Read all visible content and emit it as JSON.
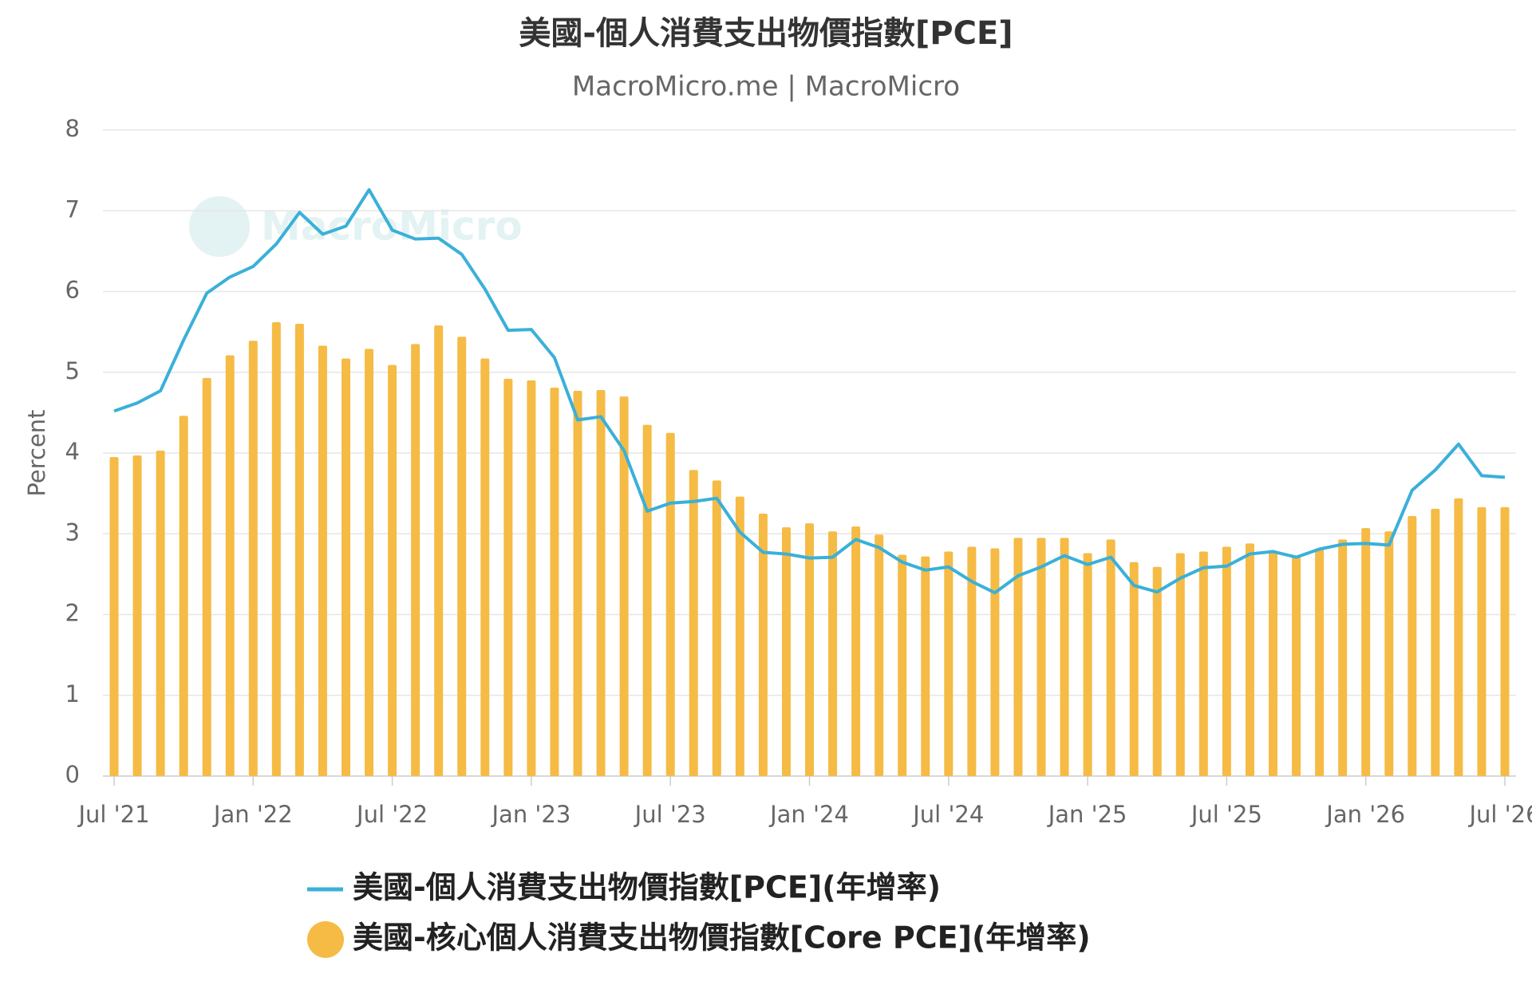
{
  "chart_data": {
    "type": "bar_line",
    "title": "美國-個人消費支出物價指數[PCE]",
    "subtitle": "MacroMicro.me | MacroMicro",
    "watermark": "MacroMicro",
    "y_label": "Percent",
    "categories": [
      "Jul '21",
      null,
      null,
      null,
      null,
      null,
      "Jan '22",
      null,
      null,
      null,
      null,
      null,
      "Jul '22",
      null,
      null,
      null,
      null,
      null,
      "Jan '23",
      null,
      null,
      null,
      null,
      null,
      "Jul '23",
      null,
      null,
      null,
      null,
      null,
      "Jan '24",
      null,
      null,
      null,
      null,
      null,
      "Jul '24",
      null,
      null,
      null,
      null,
      null,
      "Jan '25",
      null,
      null,
      null,
      null,
      null,
      "Jul '25",
      null,
      null,
      null,
      null,
      null,
      "Jan '26",
      null,
      null,
      null,
      null,
      null,
      "Jul '26"
    ],
    "series": [
      {
        "name": "美國-個人消費支出物價指數[PCE](年增率)",
        "type": "line",
        "color": "#3ab0d9",
        "values": [
          4.52,
          4.62,
          4.77,
          5.4,
          5.98,
          6.18,
          6.31,
          6.59,
          6.98,
          6.71,
          6.81,
          7.26,
          6.76,
          6.65,
          6.66,
          6.46,
          6.03,
          5.52,
          5.53,
          5.18,
          4.41,
          4.45,
          4.03,
          3.28,
          3.38,
          3.4,
          3.44,
          3.02,
          2.77,
          2.75,
          2.7,
          2.71,
          2.93,
          2.83,
          2.65,
          2.55,
          2.59,
          2.41,
          2.27,
          2.48,
          2.59,
          2.73,
          2.62,
          2.71,
          2.36,
          2.28,
          2.45,
          2.58,
          2.6,
          2.75,
          2.78,
          2.71,
          2.81,
          2.87,
          2.88,
          2.86,
          3.54,
          3.79,
          4.11,
          3.72,
          3.7
        ]
      },
      {
        "name": "美國-核心個人消費支出物價指數[Core PCE](年增率)",
        "type": "bar",
        "color": "#f5bb45",
        "values": [
          3.95,
          3.97,
          4.03,
          4.46,
          4.93,
          5.21,
          5.39,
          5.62,
          5.6,
          5.33,
          5.17,
          5.29,
          5.09,
          5.35,
          5.58,
          5.44,
          5.17,
          4.92,
          4.9,
          4.81,
          4.77,
          4.78,
          4.7,
          4.35,
          4.25,
          3.79,
          3.66,
          3.46,
          3.25,
          3.08,
          3.13,
          3.03,
          3.09,
          2.99,
          2.74,
          2.72,
          2.78,
          2.84,
          2.82,
          2.95,
          2.95,
          2.95,
          2.76,
          2.93,
          2.65,
          2.59,
          2.76,
          2.78,
          2.84,
          2.88,
          2.79,
          2.72,
          2.82,
          2.93,
          3.07,
          3.03,
          3.22,
          3.31,
          3.44,
          3.33,
          3.33
        ]
      }
    ],
    "ylim": [
      0,
      8
    ],
    "yticks": [
      0,
      1,
      2,
      3,
      4,
      5,
      6,
      7,
      8
    ],
    "grid": true
  }
}
